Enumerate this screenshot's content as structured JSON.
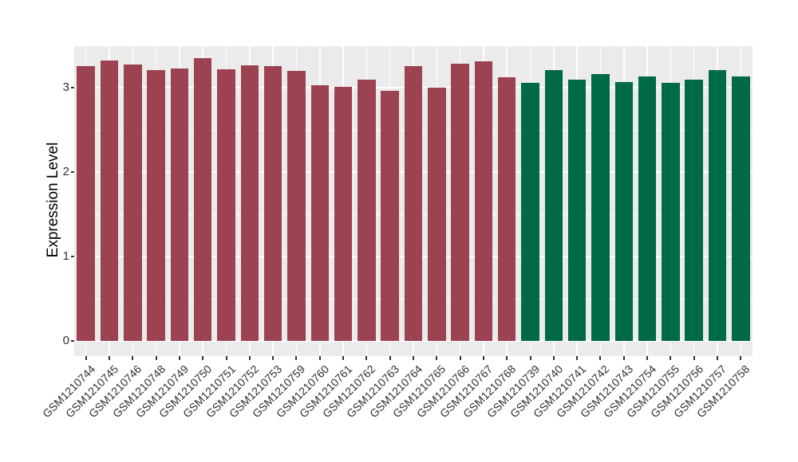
{
  "chart_data": {
    "type": "bar",
    "title": "",
    "xlabel": "",
    "ylabel": "Expression Level",
    "categories": [
      "GSM1210744",
      "GSM1210745",
      "GSM1210746",
      "GSM1210748",
      "GSM1210749",
      "GSM1210750",
      "GSM1210751",
      "GSM1210752",
      "GSM1210753",
      "GSM1210759",
      "GSM1210760",
      "GSM1210761",
      "GSM1210762",
      "GSM1210763",
      "GSM1210764",
      "GSM1210765",
      "GSM1210766",
      "GSM1210767",
      "GSM1210768",
      "GSM1210739",
      "GSM1210740",
      "GSM1210741",
      "GSM1210742",
      "GSM1210743",
      "GSM1210754",
      "GSM1210755",
      "GSM1210756",
      "GSM1210757",
      "GSM1210758"
    ],
    "values": [
      3.25,
      3.32,
      3.27,
      3.21,
      3.23,
      3.35,
      3.22,
      3.26,
      3.25,
      3.2,
      3.03,
      3.01,
      3.09,
      2.96,
      3.25,
      3.0,
      3.28,
      3.31,
      3.12,
      3.06,
      3.21,
      3.09,
      3.16,
      3.07,
      3.13,
      3.06,
      3.09,
      3.21,
      3.13
    ],
    "bar_groups": [
      "red",
      "red",
      "red",
      "red",
      "red",
      "red",
      "red",
      "red",
      "red",
      "red",
      "red",
      "red",
      "red",
      "red",
      "red",
      "red",
      "red",
      "red",
      "red",
      "green",
      "green",
      "green",
      "green",
      "green",
      "green",
      "green",
      "green",
      "green",
      "green"
    ],
    "group_colors": {
      "red": "#9D4250",
      "green": "#006946"
    },
    "yticks": [
      0,
      1,
      2,
      3
    ],
    "minor_gridlines": [
      0.5,
      1.5,
      2.5,
      3.5
    ],
    "ylim": [
      -0.18,
      3.5
    ],
    "grid": true,
    "legend_position": "none",
    "panel_background": "#EBEBEB",
    "gridline_color": "#FFFFFF",
    "axis_text_color": "#303030",
    "tick_color": "#333333"
  }
}
